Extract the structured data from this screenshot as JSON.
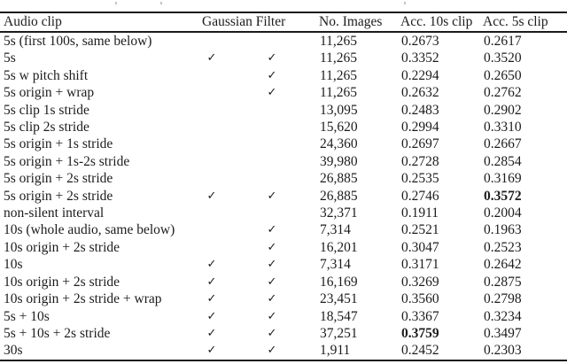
{
  "table": {
    "header": {
      "audio_clip": "Audio clip",
      "gaussian_filter": "Gaussian Filter",
      "no_images": "No. Images",
      "acc_10s": "Acc. 10s clip",
      "acc_5s": "Acc. 5s clip"
    },
    "check_glyph": "✓",
    "rows": [
      {
        "label": "5s (first 100s, same below)",
        "g1": "",
        "g2": "",
        "images": "11,265",
        "acc10": "0.2673",
        "acc5": "0.2617",
        "bold": ""
      },
      {
        "label": "5s",
        "g1": "✓",
        "g2": "✓",
        "images": "11,265",
        "acc10": "0.3352",
        "acc5": "0.3520",
        "bold": ""
      },
      {
        "label": "5s w pitch shift",
        "g1": "",
        "g2": "✓",
        "images": "11,265",
        "acc10": "0.2294",
        "acc5": "0.2650",
        "bold": ""
      },
      {
        "label": "5s origin + wrap",
        "g1": "",
        "g2": "✓",
        "images": "11,265",
        "acc10": "0.2632",
        "acc5": "0.2762",
        "bold": ""
      },
      {
        "label": "5s clip 1s stride",
        "g1": "",
        "g2": "",
        "images": "13,095",
        "acc10": "0.2483",
        "acc5": "0.2902",
        "bold": ""
      },
      {
        "label": "5s clip 2s stride",
        "g1": "",
        "g2": "",
        "images": "15,620",
        "acc10": "0.2994",
        "acc5": "0.3310",
        "bold": ""
      },
      {
        "label": "5s origin + 1s stride",
        "g1": "",
        "g2": "",
        "images": "24,360",
        "acc10": "0.2697",
        "acc5": "0.2667",
        "bold": ""
      },
      {
        "label": "5s origin + 1s-2s stride",
        "g1": "",
        "g2": "",
        "images": "39,980",
        "acc10": "0.2728",
        "acc5": "0.2854",
        "bold": ""
      },
      {
        "label": "5s origin + 2s stride",
        "g1": "",
        "g2": "",
        "images": "26,885",
        "acc10": "0.2535",
        "acc5": "0.3169",
        "bold": ""
      },
      {
        "label": "5s origin + 2s stride",
        "g1": "✓",
        "g2": "✓",
        "images": "26,885",
        "acc10": "0.2746",
        "acc5": "0.3572",
        "bold": "acc5"
      },
      {
        "label": "non-silent interval",
        "g1": "",
        "g2": "",
        "images": "32,371",
        "acc10": "0.1911",
        "acc5": "0.2004",
        "bold": ""
      },
      {
        "label": "10s (whole audio, same below)",
        "g1": "",
        "g2": "✓",
        "images": "7,314",
        "acc10": "0.2521",
        "acc5": "0.1963",
        "bold": ""
      },
      {
        "label": "10s origin + 2s stride",
        "g1": "",
        "g2": "✓",
        "images": "16,201",
        "acc10": "0.3047",
        "acc5": "0.2523",
        "bold": ""
      },
      {
        "label": "10s",
        "g1": "✓",
        "g2": "✓",
        "images": "7,314",
        "acc10": "0.3171",
        "acc5": "0.2642",
        "bold": ""
      },
      {
        "label": "10s origin + 2s stride",
        "g1": "✓",
        "g2": "✓",
        "images": "16,169",
        "acc10": "0.3269",
        "acc5": "0.2875",
        "bold": ""
      },
      {
        "label": "10s origin + 2s stride + wrap",
        "g1": "✓",
        "g2": "✓",
        "images": "23,451",
        "acc10": "0.3560",
        "acc5": "0.2798",
        "bold": ""
      },
      {
        "label": "5s + 10s",
        "g1": "✓",
        "g2": "✓",
        "images": "18,547",
        "acc10": "0.3367",
        "acc5": "0.3234",
        "bold": ""
      },
      {
        "label": "5s + 10s + 2s stride",
        "g1": "✓",
        "g2": "✓",
        "images": "37,251",
        "acc10": "0.3759",
        "acc5": "0.3497",
        "bold": "acc10"
      },
      {
        "label": "30s",
        "g1": "✓",
        "g2": "✓",
        "images": "1,911",
        "acc10": "0.2452",
        "acc5": "0.2303",
        "bold": ""
      }
    ]
  }
}
